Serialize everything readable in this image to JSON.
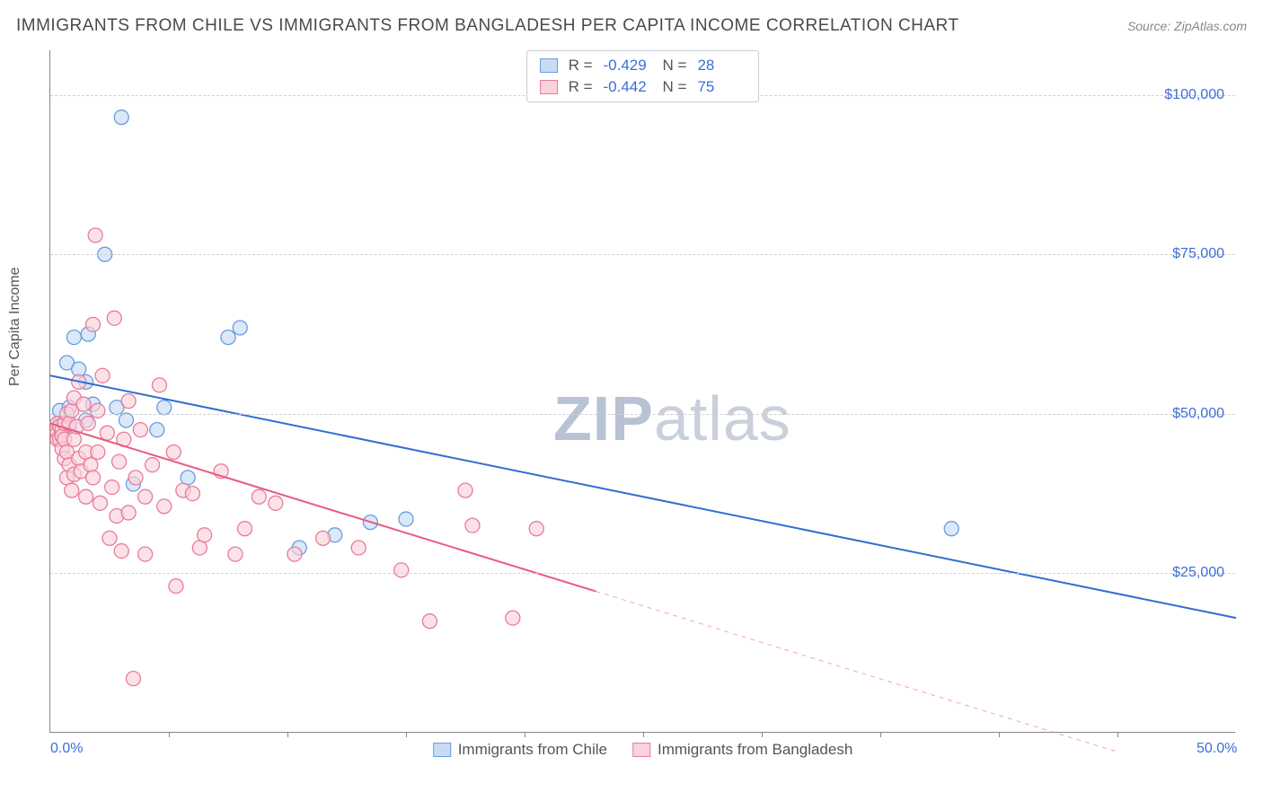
{
  "title": "IMMIGRANTS FROM CHILE VS IMMIGRANTS FROM BANGLADESH PER CAPITA INCOME CORRELATION CHART",
  "source": "Source: ZipAtlas.com",
  "ylabel": "Per Capita Income",
  "watermark_bold": "ZIP",
  "watermark_rest": "atlas",
  "chart": {
    "type": "scatter",
    "xlim": [
      0,
      50
    ],
    "ylim": [
      0,
      107000
    ],
    "xtick_labels": [
      {
        "pos": 0,
        "label": "0.0%"
      },
      {
        "pos": 50,
        "label": "50.0%"
      }
    ],
    "xtick_marks": [
      5,
      10,
      15,
      20,
      25,
      30,
      35,
      40,
      45
    ],
    "ytick_labels": [
      {
        "pos": 25000,
        "label": "$25,000"
      },
      {
        "pos": 50000,
        "label": "$50,000"
      },
      {
        "pos": 75000,
        "label": "$75,000"
      },
      {
        "pos": 100000,
        "label": "$100,000"
      }
    ],
    "grid_color": "#d0d0d0",
    "background_color": "#ffffff",
    "marker_radius": 8,
    "marker_stroke_width": 1.3,
    "line_width": 2,
    "series": [
      {
        "name": "Immigrants from Chile",
        "fill": "#c8dbf5",
        "stroke": "#6a9be0",
        "line_color": "#2f6fd0",
        "R": "-0.429",
        "N": "28",
        "regression": {
          "x1": 0,
          "y1": 56000,
          "x2": 50,
          "y2": 18000,
          "solid_until": 50
        },
        "points": [
          [
            0.4,
            48500
          ],
          [
            0.4,
            50500
          ],
          [
            0.5,
            46500
          ],
          [
            0.6,
            48000
          ],
          [
            0.7,
            58000
          ],
          [
            0.8,
            48000
          ],
          [
            0.8,
            51000
          ],
          [
            1.0,
            62000
          ],
          [
            1.2,
            57000
          ],
          [
            1.5,
            55000
          ],
          [
            1.5,
            49000
          ],
          [
            1.6,
            62500
          ],
          [
            1.8,
            51500
          ],
          [
            2.3,
            75000
          ],
          [
            2.8,
            51000
          ],
          [
            3.0,
            96500
          ],
          [
            3.2,
            49000
          ],
          [
            3.5,
            39000
          ],
          [
            4.5,
            47500
          ],
          [
            4.8,
            51000
          ],
          [
            5.8,
            40000
          ],
          [
            7.5,
            62000
          ],
          [
            8.0,
            63500
          ],
          [
            10.5,
            29000
          ],
          [
            12.0,
            31000
          ],
          [
            13.5,
            33000
          ],
          [
            15.0,
            33500
          ],
          [
            38.0,
            32000
          ]
        ]
      },
      {
        "name": "Immigrants from Bangladesh",
        "fill": "#f9d2dc",
        "stroke": "#e77c99",
        "line_color": "#e85b82",
        "R": "-0.442",
        "N": "75",
        "regression": {
          "x1": 0,
          "y1": 48500,
          "x2": 45,
          "y2": -3000,
          "solid_until": 23
        },
        "points": [
          [
            0.3,
            47000
          ],
          [
            0.3,
            48500
          ],
          [
            0.3,
            46000
          ],
          [
            0.4,
            48000
          ],
          [
            0.4,
            46000
          ],
          [
            0.5,
            47500
          ],
          [
            0.5,
            46500
          ],
          [
            0.5,
            44500
          ],
          [
            0.6,
            48500
          ],
          [
            0.6,
            46000
          ],
          [
            0.6,
            43000
          ],
          [
            0.7,
            50000
          ],
          [
            0.7,
            44000
          ],
          [
            0.7,
            40000
          ],
          [
            0.8,
            48500
          ],
          [
            0.8,
            42000
          ],
          [
            0.9,
            50500
          ],
          [
            0.9,
            38000
          ],
          [
            1.0,
            46000
          ],
          [
            1.0,
            52500
          ],
          [
            1.0,
            40500
          ],
          [
            1.1,
            48000
          ],
          [
            1.2,
            55000
          ],
          [
            1.2,
            43000
          ],
          [
            1.3,
            41000
          ],
          [
            1.4,
            51500
          ],
          [
            1.5,
            44000
          ],
          [
            1.5,
            37000
          ],
          [
            1.6,
            48500
          ],
          [
            1.7,
            42000
          ],
          [
            1.8,
            64000
          ],
          [
            1.8,
            40000
          ],
          [
            1.9,
            78000
          ],
          [
            2.0,
            50500
          ],
          [
            2.0,
            44000
          ],
          [
            2.1,
            36000
          ],
          [
            2.2,
            56000
          ],
          [
            2.4,
            47000
          ],
          [
            2.5,
            30500
          ],
          [
            2.6,
            38500
          ],
          [
            2.7,
            65000
          ],
          [
            2.8,
            34000
          ],
          [
            2.9,
            42500
          ],
          [
            3.0,
            28500
          ],
          [
            3.1,
            46000
          ],
          [
            3.3,
            52000
          ],
          [
            3.3,
            34500
          ],
          [
            3.5,
            8500
          ],
          [
            3.6,
            40000
          ],
          [
            3.8,
            47500
          ],
          [
            4.0,
            37000
          ],
          [
            4.0,
            28000
          ],
          [
            4.3,
            42000
          ],
          [
            4.6,
            54500
          ],
          [
            4.8,
            35500
          ],
          [
            5.2,
            44000
          ],
          [
            5.3,
            23000
          ],
          [
            5.6,
            38000
          ],
          [
            6.0,
            37500
          ],
          [
            6.3,
            29000
          ],
          [
            6.5,
            31000
          ],
          [
            7.2,
            41000
          ],
          [
            7.8,
            28000
          ],
          [
            8.2,
            32000
          ],
          [
            8.8,
            37000
          ],
          [
            9.5,
            36000
          ],
          [
            10.3,
            28000
          ],
          [
            11.5,
            30500
          ],
          [
            13.0,
            29000
          ],
          [
            14.8,
            25500
          ],
          [
            16.0,
            17500
          ],
          [
            17.5,
            38000
          ],
          [
            17.8,
            32500
          ],
          [
            19.5,
            18000
          ],
          [
            20.5,
            32000
          ]
        ]
      }
    ]
  },
  "legend_bottom": [
    {
      "label": "Immigrants from Chile",
      "fill": "#c8dbf5",
      "stroke": "#6a9be0"
    },
    {
      "label": "Immigrants from Bangladesh",
      "fill": "#f9d2dc",
      "stroke": "#e77c99"
    }
  ]
}
